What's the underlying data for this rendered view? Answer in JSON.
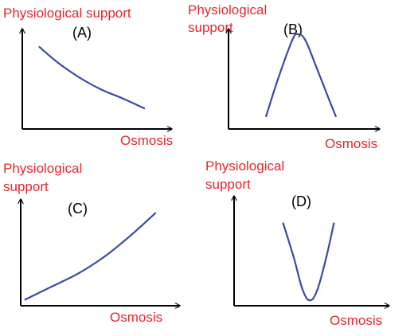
{
  "colors": {
    "label": "#e0282e",
    "axis": "#000000",
    "curve": "#3b4ba3"
  },
  "chart_data": [
    {
      "type": "line",
      "title": "(A)",
      "ylabel": "Physiological support",
      "xlabel": "Osmosis",
      "shape": "decreasing",
      "xlim": [
        0,
        1
      ],
      "ylim": [
        0,
        1
      ],
      "x": [
        0.12,
        0.25,
        0.4,
        0.55,
        0.7,
        0.85
      ],
      "y": [
        0.83,
        0.67,
        0.52,
        0.4,
        0.31,
        0.21
      ]
    },
    {
      "type": "line",
      "title": "(B)",
      "ylabel": "Physiological support",
      "xlabel": "Osmosis",
      "shape": "peak",
      "xlim": [
        0,
        1
      ],
      "ylim": [
        0,
        1
      ],
      "x": [
        0.26,
        0.34,
        0.44,
        0.48,
        0.53,
        0.6,
        0.68,
        0.74
      ],
      "y": [
        0.13,
        0.5,
        0.9,
        0.96,
        0.9,
        0.65,
        0.35,
        0.13
      ]
    },
    {
      "type": "line",
      "title": "(C)",
      "ylabel": "Physiological support",
      "xlabel": "Osmosis",
      "shape": "increasing",
      "xlim": [
        0,
        1
      ],
      "ylim": [
        0,
        1
      ],
      "x": [
        0.03,
        0.2,
        0.38,
        0.55,
        0.72,
        0.88
      ],
      "y": [
        0.06,
        0.18,
        0.31,
        0.47,
        0.67,
        0.88
      ]
    },
    {
      "type": "line",
      "title": "(D)",
      "ylabel": "Physiological support",
      "xlabel": "Osmosis",
      "shape": "valley",
      "xlim": [
        0,
        1
      ],
      "ylim": [
        0,
        1
      ],
      "x": [
        0.33,
        0.4,
        0.46,
        0.51,
        0.56,
        0.62,
        0.67
      ],
      "y": [
        0.76,
        0.45,
        0.15,
        0.05,
        0.15,
        0.45,
        0.76
      ]
    }
  ]
}
